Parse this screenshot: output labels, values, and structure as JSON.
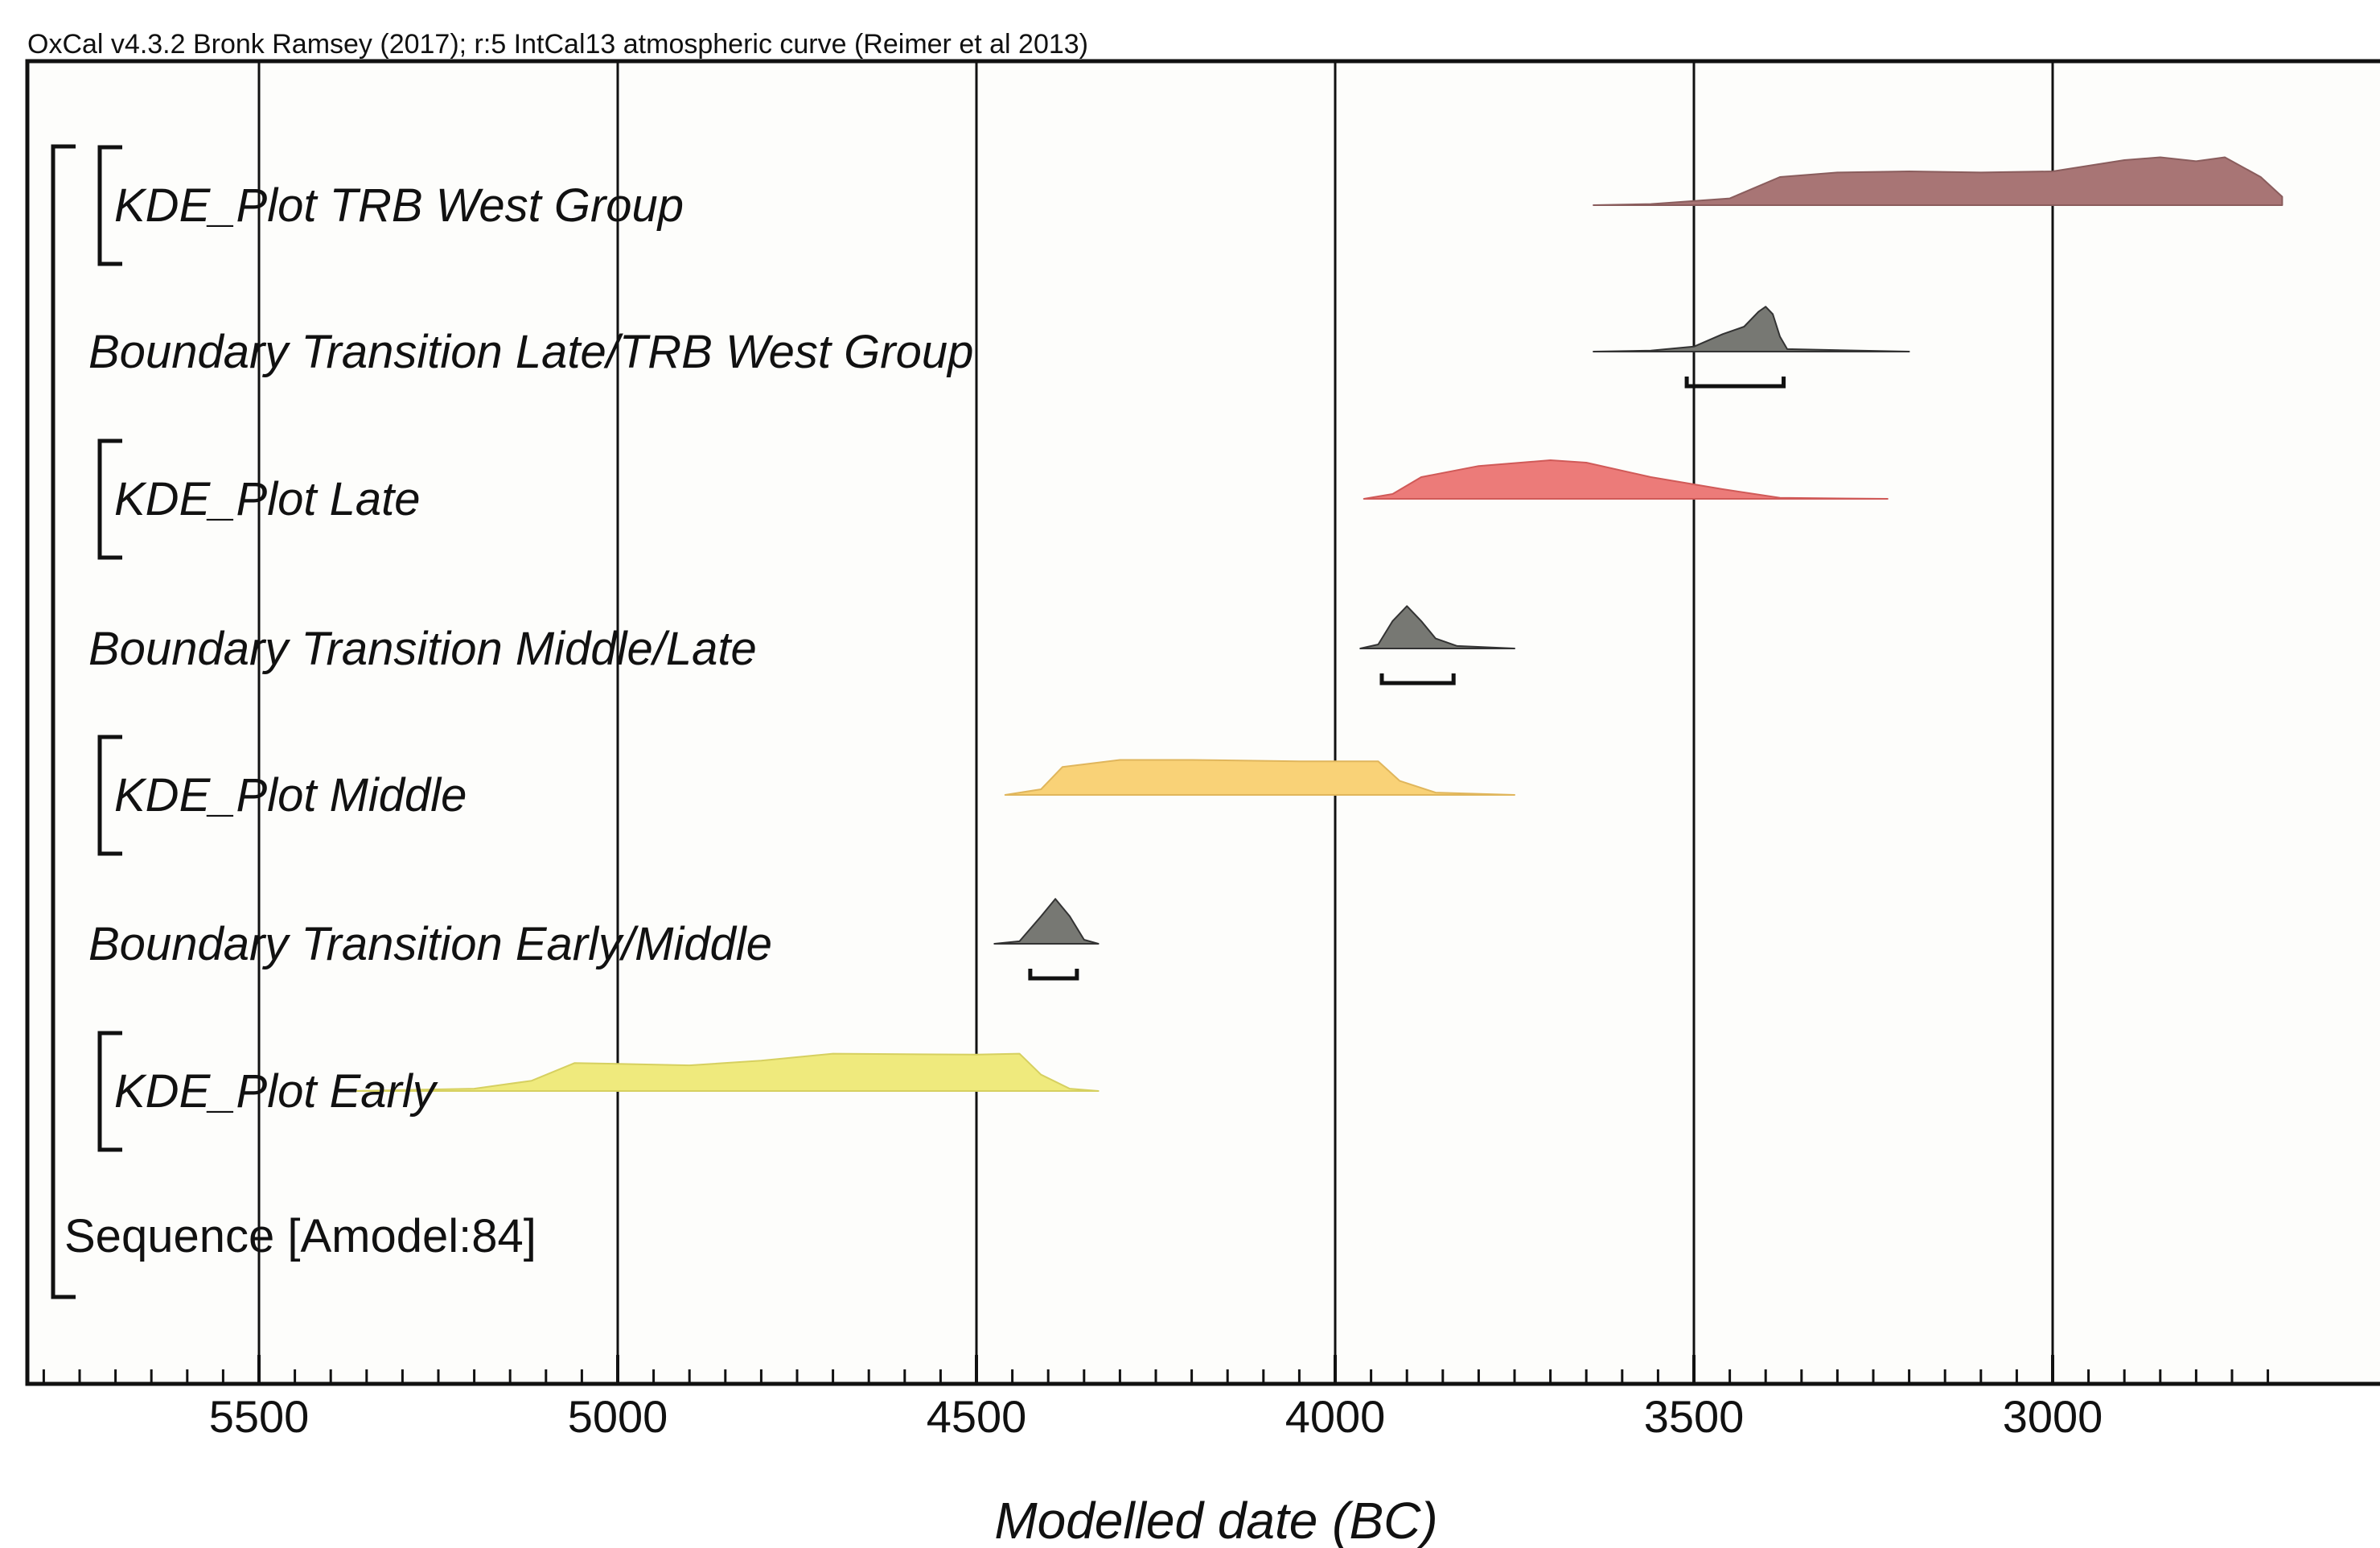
{
  "header": "OxCal v4.3.2 Bronk Ramsey (2017); r:5 IntCal13 atmospheric curve (Reimer et al 2013)",
  "chart_data": {
    "type": "area",
    "xlabel": "Modelled date (BC)",
    "ylabel": "",
    "xlim": [
      5840,
      2680
    ],
    "x_reversed": true,
    "major_ticks": [
      5500,
      5000,
      4500,
      4000,
      3500,
      3000
    ],
    "minor_tick_step": 50,
    "grid": "vertical lines at major ticks",
    "rows": [
      {
        "label": "KDE_Plot TRB West Group",
        "kind": "kde",
        "color": "#a87575",
        "stroke": "#8a5d5d",
        "density": [
          [
            3640,
            0
          ],
          [
            3560,
            0.02
          ],
          [
            3450,
            0.12
          ],
          [
            3380,
            0.5
          ],
          [
            3300,
            0.58
          ],
          [
            3200,
            0.6
          ],
          [
            3100,
            0.58
          ],
          [
            3000,
            0.6
          ],
          [
            2900,
            0.8
          ],
          [
            2850,
            0.85
          ],
          [
            2800,
            0.78
          ],
          [
            2760,
            0.85
          ],
          [
            2710,
            0.5
          ],
          [
            2680,
            0.15
          ]
        ]
      },
      {
        "label": "Boundary Transition Late/TRB West Group",
        "kind": "boundary",
        "color": "#777873",
        "stroke": "#333333",
        "density": [
          [
            3640,
            0
          ],
          [
            3560,
            0.02
          ],
          [
            3500,
            0.1
          ],
          [
            3460,
            0.35
          ],
          [
            3430,
            0.5
          ],
          [
            3410,
            0.8
          ],
          [
            3400,
            0.9
          ],
          [
            3390,
            0.75
          ],
          [
            3380,
            0.3
          ],
          [
            3370,
            0.05
          ],
          [
            3200,
            0
          ]
        ],
        "range": [
          3510,
          3375
        ]
      },
      {
        "label": "KDE_Plot Late",
        "kind": "kde",
        "color": "#ec7b79",
        "stroke": "#d05a58",
        "density": [
          [
            3960,
            0
          ],
          [
            3920,
            0.1
          ],
          [
            3880,
            0.45
          ],
          [
            3800,
            0.68
          ],
          [
            3700,
            0.8
          ],
          [
            3650,
            0.75
          ],
          [
            3560,
            0.45
          ],
          [
            3460,
            0.2
          ],
          [
            3380,
            0.02
          ],
          [
            3230,
            0
          ]
        ]
      },
      {
        "label": "Boundary Transition Middle/Late",
        "kind": "boundary",
        "color": "#777873",
        "stroke": "#333333",
        "density": [
          [
            3965,
            0
          ],
          [
            3940,
            0.08
          ],
          [
            3920,
            0.55
          ],
          [
            3900,
            0.85
          ],
          [
            3880,
            0.55
          ],
          [
            3860,
            0.2
          ],
          [
            3830,
            0.05
          ],
          [
            3750,
            0
          ]
        ],
        "range": [
          3935,
          3835
        ]
      },
      {
        "label": "KDE_Plot Middle",
        "kind": "kde",
        "color": "#f9d277",
        "stroke": "#e0b65c",
        "density": [
          [
            4460,
            0
          ],
          [
            4410,
            0.12
          ],
          [
            4380,
            0.6
          ],
          [
            4300,
            0.75
          ],
          [
            4200,
            0.75
          ],
          [
            4050,
            0.72
          ],
          [
            3940,
            0.72
          ],
          [
            3910,
            0.3
          ],
          [
            3860,
            0.05
          ],
          [
            3750,
            0
          ]
        ]
      },
      {
        "label": "Boundary Transition Early/Middle",
        "kind": "boundary",
        "color": "#777873",
        "stroke": "#333333",
        "density": [
          [
            4475,
            0
          ],
          [
            4440,
            0.05
          ],
          [
            4410,
            0.55
          ],
          [
            4390,
            0.9
          ],
          [
            4370,
            0.55
          ],
          [
            4350,
            0.08
          ],
          [
            4330,
            0
          ]
        ],
        "range": [
          4425,
          4360
        ]
      },
      {
        "label": "KDE_Plot Early",
        "kind": "kde",
        "color": "#efea7d",
        "stroke": "#d6d060",
        "density": [
          [
            5370,
            0
          ],
          [
            5200,
            0.05
          ],
          [
            5120,
            0.22
          ],
          [
            5060,
            0.6
          ],
          [
            4900,
            0.55
          ],
          [
            4800,
            0.65
          ],
          [
            4700,
            0.8
          ],
          [
            4500,
            0.78
          ],
          [
            4440,
            0.8
          ],
          [
            4410,
            0.35
          ],
          [
            4370,
            0.05
          ],
          [
            4330,
            0
          ]
        ]
      },
      {
        "label": "Sequence [Amodel:84]",
        "kind": "text"
      }
    ]
  }
}
